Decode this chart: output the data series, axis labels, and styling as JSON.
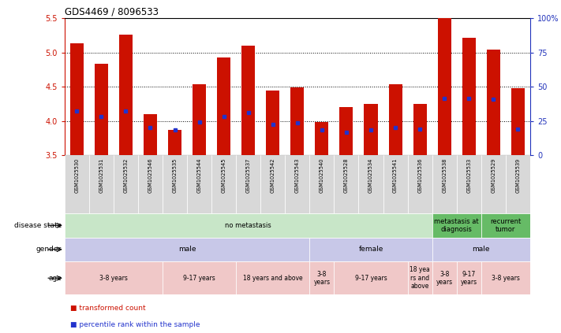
{
  "title": "GDS4469 / 8096533",
  "samples": [
    "GSM1025530",
    "GSM1025531",
    "GSM1025532",
    "GSM1025546",
    "GSM1025535",
    "GSM1025544",
    "GSM1025545",
    "GSM1025537",
    "GSM1025542",
    "GSM1025543",
    "GSM1025540",
    "GSM1025528",
    "GSM1025534",
    "GSM1025541",
    "GSM1025536",
    "GSM1025538",
    "GSM1025533",
    "GSM1025529",
    "GSM1025539"
  ],
  "bar_tops": [
    5.14,
    4.84,
    5.26,
    4.1,
    3.87,
    4.54,
    4.93,
    5.1,
    4.44,
    4.49,
    3.99,
    4.2,
    4.25,
    4.54,
    4.25,
    5.62,
    5.22,
    5.04,
    4.48
  ],
  "blue_vals": [
    4.15,
    4.07,
    4.15,
    3.9,
    3.87,
    3.98,
    4.06,
    4.12,
    3.95,
    3.97,
    3.87,
    3.83,
    3.87,
    3.9,
    3.88,
    4.33,
    4.33,
    4.32,
    3.88
  ],
  "bar_bottom": 3.5,
  "ylim_left": [
    3.5,
    5.5
  ],
  "ylim_right": [
    0,
    100
  ],
  "y_right_ticks": [
    0,
    25,
    50,
    75,
    100
  ],
  "y_left_ticks": [
    3.5,
    4.0,
    4.5,
    5.0,
    5.5
  ],
  "dotted_lines": [
    4.0,
    4.5,
    5.0
  ],
  "disease_state": [
    {
      "label": "no metastasis",
      "start": 0,
      "end": 15,
      "color": "#c8e6c8"
    },
    {
      "label": "metastasis at\ndiagnosis",
      "start": 15,
      "end": 17,
      "color": "#66bb66"
    },
    {
      "label": "recurrent\ntumor",
      "start": 17,
      "end": 19,
      "color": "#66bb66"
    }
  ],
  "gender": [
    {
      "label": "male",
      "start": 0,
      "end": 10,
      "color": "#c8c8e8"
    },
    {
      "label": "female",
      "start": 10,
      "end": 15,
      "color": "#c8c8e8"
    },
    {
      "label": "male",
      "start": 15,
      "end": 19,
      "color": "#c8c8e8"
    }
  ],
  "age": [
    {
      "label": "3-8 years",
      "start": 0,
      "end": 4,
      "color": "#f0c8c8"
    },
    {
      "label": "9-17 years",
      "start": 4,
      "end": 7,
      "color": "#f0c8c8"
    },
    {
      "label": "18 years and above",
      "start": 7,
      "end": 10,
      "color": "#f0c8c8"
    },
    {
      "label": "3-8\nyears",
      "start": 10,
      "end": 11,
      "color": "#f0c8c8"
    },
    {
      "label": "9-17 years",
      "start": 11,
      "end": 14,
      "color": "#f0c8c8"
    },
    {
      "label": "18 yea\nrs and\nabove",
      "start": 14,
      "end": 15,
      "color": "#f0c8c8"
    },
    {
      "label": "3-8\nyears",
      "start": 15,
      "end": 16,
      "color": "#f0c8c8"
    },
    {
      "label": "9-17\nyears",
      "start": 16,
      "end": 17,
      "color": "#f0c8c8"
    },
    {
      "label": "3-8 years",
      "start": 17,
      "end": 19,
      "color": "#f0c8c8"
    }
  ],
  "bar_color": "#cc1100",
  "blue_color": "#2233cc",
  "bg_color": "#ffffff",
  "left_label_color": "#cc1100",
  "right_label_color": "#2233bb",
  "sample_bg_color": "#d8d8d8"
}
